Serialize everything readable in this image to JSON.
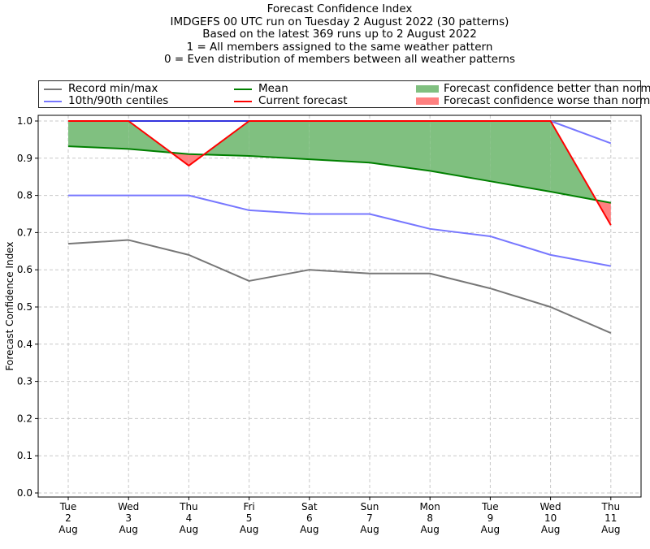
{
  "chart_data": {
    "type": "line",
    "title_lines": [
      "Forecast Confidence Index",
      "IMDGEFS 00 UTC run on Tuesday 2 August 2022 (30 patterns)",
      "Based on the latest 369 runs up to 2 August 2022",
      "1 = All members assigned to the same weather pattern",
      "0 = Even distribution of members between all weather patterns"
    ],
    "ylabel": "Forecast Confidence Index",
    "ylim": [
      0,
      1
    ],
    "yticks": [
      "0.0",
      "0.1",
      "0.2",
      "0.3",
      "0.4",
      "0.5",
      "0.6",
      "0.7",
      "0.8",
      "0.9",
      "1.0"
    ],
    "categories": [
      [
        "Tue",
        "2",
        "Aug"
      ],
      [
        "Wed",
        "3",
        "Aug"
      ],
      [
        "Thu",
        "4",
        "Aug"
      ],
      [
        "Fri",
        "5",
        "Aug"
      ],
      [
        "Sat",
        "6",
        "Aug"
      ],
      [
        "Sun",
        "7",
        "Aug"
      ],
      [
        "Mon",
        "8",
        "Aug"
      ],
      [
        "Tue",
        "9",
        "Aug"
      ],
      [
        "Wed",
        "10",
        "Aug"
      ],
      [
        "Thu",
        "11",
        "Aug"
      ]
    ],
    "grid": true,
    "legend_position": "top",
    "legend": {
      "record": "Record min/max",
      "centiles": "10th/90th centiles",
      "mean": "Mean",
      "current": "Current forecast",
      "better": "Forecast confidence better than normal",
      "worse": "Forecast confidence worse than normal"
    },
    "colors": {
      "record": "#777777",
      "centiles": "#7777ff",
      "mean": "#008000",
      "current": "#ff0000",
      "better": "#80c080",
      "worse": "#ff8080",
      "top_line": "#3333dd"
    },
    "series": {
      "record_min": [
        0.67,
        0.68,
        0.64,
        0.57,
        0.6,
        0.59,
        0.59,
        0.55,
        0.5,
        0.43
      ],
      "record_max": [
        1.0,
        1.0,
        1.0,
        1.0,
        1.0,
        1.0,
        1.0,
        1.0,
        1.0,
        1.0
      ],
      "p10": [
        0.8,
        0.8,
        0.8,
        0.76,
        0.75,
        0.75,
        0.71,
        0.69,
        0.64,
        0.61
      ],
      "p90": [
        1.0,
        1.0,
        1.0,
        1.0,
        1.0,
        1.0,
        1.0,
        1.0,
        1.0,
        0.94
      ],
      "mean": [
        0.932,
        0.925,
        0.911,
        0.906,
        0.897,
        0.888,
        0.866,
        0.838,
        0.81,
        0.78
      ],
      "current": [
        1.0,
        1.0,
        0.88,
        1.0,
        1.0,
        1.0,
        1.0,
        1.0,
        1.0,
        0.72
      ]
    }
  }
}
